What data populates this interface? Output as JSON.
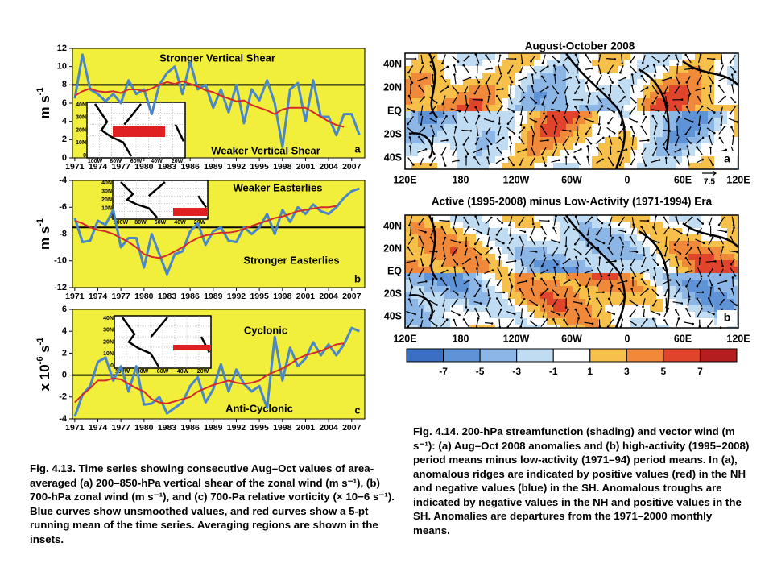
{
  "chart_data": [
    {
      "type": "line",
      "x": [
        1971,
        1972,
        1973,
        1974,
        1975,
        1976,
        1977,
        1978,
        1979,
        1980,
        1981,
        1982,
        1983,
        1984,
        1985,
        1986,
        1987,
        1988,
        1989,
        1990,
        1991,
        1992,
        1993,
        1994,
        1995,
        1996,
        1997,
        1998,
        1999,
        2000,
        2001,
        2002,
        2003,
        2004,
        2005,
        2006,
        2007,
        2008
      ],
      "series": [
        {
          "name": "unsmoothed",
          "color": "#4a86c8",
          "values": [
            6.5,
            11.3,
            7.5,
            7,
            6.2,
            7,
            6,
            8.5,
            7,
            7.5,
            4.8,
            8,
            9.3,
            10,
            7,
            10.5,
            7.5,
            8,
            5.5,
            7.5,
            5,
            8,
            3.8,
            7.5,
            6.3,
            8.5,
            6,
            1.2,
            7.5,
            8.2,
            4,
            8.5,
            4.5,
            4.5,
            2.5,
            4.8,
            4.8,
            2.5
          ]
        },
        {
          "name": "5-pt running mean",
          "color": "#d42a2a",
          "values": [
            6.8,
            7.3,
            7.6,
            7.3,
            7.2,
            7.3,
            7.1,
            7.5,
            7.5,
            7.3,
            7.6,
            8,
            8.3,
            8.1,
            8.4,
            8.1,
            7.8,
            7.4,
            7.2,
            6.8,
            6.5,
            6.2,
            6.3,
            5.8,
            5.5,
            5.2,
            4.8,
            5.3,
            5.5,
            5.5,
            5.5,
            5,
            4.5,
            4,
            3.6,
            3.4,
            null,
            null
          ]
        }
      ],
      "xlim": [
        1970.7,
        2008.7
      ],
      "xticks": [
        1971,
        1974,
        1977,
        1980,
        1983,
        1986,
        1989,
        1992,
        1995,
        1998,
        2001,
        2004,
        2007
      ],
      "ylim": [
        0,
        12
      ],
      "yticks": [
        0,
        2,
        4,
        6,
        8,
        10,
        12
      ],
      "reference_line": 8,
      "ylabel_parts": [
        "m s",
        "-1"
      ],
      "annotations": [
        "Stronger Vertical Shear",
        "Weaker Vertical Shear"
      ],
      "panel_label": "a",
      "inset_lat_labels": [
        "40N",
        "30N",
        "20N",
        "10N",
        "0"
      ],
      "inset_lon_labels": [
        "100W",
        "80W",
        "60W",
        "40W",
        "20W"
      ]
    },
    {
      "type": "line",
      "x": [
        1971,
        1972,
        1973,
        1974,
        1975,
        1976,
        1977,
        1978,
        1979,
        1980,
        1981,
        1982,
        1983,
        1984,
        1985,
        1986,
        1987,
        1988,
        1989,
        1990,
        1991,
        1992,
        1993,
        1994,
        1995,
        1996,
        1997,
        1998,
        1999,
        2000,
        2001,
        2002,
        2003,
        2004,
        2005,
        2006,
        2007,
        2008
      ],
      "series": [
        {
          "name": "unsmoothed",
          "color": "#4a86c8",
          "values": [
            -6.8,
            -8.6,
            -8.5,
            -7,
            -7.3,
            -6.2,
            -9,
            -8.3,
            -8.3,
            -10.5,
            -8,
            -9.5,
            -11,
            -9.5,
            -9.3,
            -7.8,
            -7.2,
            -8.8,
            -7.8,
            -7.5,
            -8.5,
            -8.6,
            -7.5,
            -8,
            -7.5,
            -6.5,
            -8,
            -6.2,
            -7.1,
            -6,
            -6.5,
            -5.8,
            -6.3,
            -6.5,
            -6,
            -5.3,
            -4.8,
            -4.6
          ]
        },
        {
          "name": "5-pt running mean",
          "color": "#d42a2a",
          "values": [
            -7,
            -7.2,
            -7.5,
            -7.7,
            -7.8,
            -8,
            -8.3,
            -8.6,
            -9,
            -9.5,
            -9.7,
            -9.8,
            -9.6,
            -9.3,
            -9,
            -8.6,
            -8.3,
            -8.1,
            -8,
            -7.9,
            -7.9,
            -7.8,
            -7.6,
            -7.4,
            -7.2,
            -7,
            -6.8,
            -6.7,
            -6.5,
            -6.3,
            -6.2,
            -6.1,
            -6,
            -6,
            -5.9,
            null,
            null,
            null
          ]
        }
      ],
      "xlim": [
        1970.7,
        2008.7
      ],
      "xticks": [
        1971,
        1974,
        1977,
        1980,
        1983,
        1986,
        1989,
        1992,
        1995,
        1998,
        2001,
        2004,
        2007
      ],
      "ylim": [
        -12,
        -4
      ],
      "yticks": [
        -12,
        -10,
        -8,
        -6,
        -4
      ],
      "reference_line": -7.5,
      "ylabel_parts": [
        "m s",
        "-1"
      ],
      "annotations": [
        "Weaker Easterlies",
        "Stronger Easterlies"
      ],
      "panel_label": "b",
      "inset_lat_labels": [
        "40N",
        "30N",
        "20N",
        "10N",
        "0"
      ],
      "inset_lon_labels": [
        "100W",
        "80W",
        "60W",
        "40W",
        "20W"
      ]
    },
    {
      "type": "line",
      "x": [
        1971,
        1972,
        1973,
        1974,
        1975,
        1976,
        1977,
        1978,
        1979,
        1980,
        1981,
        1982,
        1983,
        1984,
        1985,
        1986,
        1987,
        1988,
        1989,
        1990,
        1991,
        1992,
        1993,
        1994,
        1995,
        1996,
        1997,
        1998,
        1999,
        2000,
        2001,
        2002,
        2003,
        2004,
        2005,
        2006,
        2007,
        2008
      ],
      "series": [
        {
          "name": "unsmoothed",
          "color": "#4a86c8",
          "values": [
            -3.8,
            -1.8,
            -1,
            1.2,
            1.6,
            -0.5,
            0.8,
            -1.5,
            0.8,
            -2.7,
            -2.6,
            -2,
            -3.5,
            -3,
            -2.5,
            -1,
            -0.2,
            -2.5,
            -1.3,
            1,
            -1.5,
            0.5,
            -0.8,
            -1.5,
            -1,
            -3,
            3.5,
            -0.5,
            2.5,
            0.8,
            1.5,
            3,
            1.8,
            2.8,
            1.8,
            2.8,
            4.3,
            4
          ]
        },
        {
          "name": "5-pt running mean",
          "color": "#d42a2a",
          "values": [
            -2.5,
            -1.8,
            -1.2,
            -0.5,
            -0.5,
            -0.3,
            -0.4,
            -0.8,
            -1.2,
            -1.5,
            -2.2,
            -2.5,
            -2.6,
            -2.4,
            -2.2,
            -2,
            -1.5,
            -1.2,
            -0.9,
            -0.7,
            -0.5,
            -0.7,
            -0.8,
            -0.7,
            -0.5,
            0,
            0.3,
            0.6,
            1,
            1.5,
            1.8,
            2,
            2.2,
            2.5,
            2.8,
            2.9,
            null,
            null
          ]
        }
      ],
      "xlim": [
        1970.7,
        2008.7
      ],
      "xticks": [
        1971,
        1974,
        1977,
        1980,
        1983,
        1986,
        1989,
        1992,
        1995,
        1998,
        2001,
        2004,
        2007
      ],
      "ylim": [
        -4,
        6
      ],
      "yticks": [
        -4,
        -2,
        0,
        2,
        4,
        6
      ],
      "reference_line": 0,
      "ylabel_parts": [
        "x 10",
        "-6",
        " s",
        "-1"
      ],
      "annotations": [
        "Cyclonic",
        "Anti-Cyclonic"
      ],
      "panel_label": "c",
      "inset_lat_labels": [
        "40N",
        "30N",
        "20N",
        "10N",
        "0"
      ],
      "inset_lon_labels": [
        "100W",
        "80W",
        "60W",
        "40W",
        "20W"
      ]
    }
  ],
  "maps": [
    {
      "title": "August-October 2008",
      "lat_labels": [
        "40N",
        "20N",
        "EQ",
        "20S",
        "40S"
      ],
      "lon_labels": [
        "120E",
        "180",
        "120W",
        "60W",
        "0",
        "60E",
        "120E"
      ],
      "panel_label": "a",
      "vector_scale_label": "7.5"
    },
    {
      "title": "Active (1995-2008) minus Low-Activity (1971-1994) Era",
      "lat_labels": [
        "40N",
        "20N",
        "EQ",
        "20S",
        "40S"
      ],
      "lon_labels": [
        "120E",
        "180",
        "120W",
        "60W",
        "0",
        "60E",
        "120E"
      ],
      "panel_label": "b"
    }
  ],
  "colorbar": {
    "colors": [
      "#3a6fc4",
      "#5f93d8",
      "#8cb6e6",
      "#c0dcf2",
      "#ffffff",
      "#f7c04a",
      "#f08a3a",
      "#e0442a",
      "#b51e1e"
    ],
    "ticks": [
      -7,
      -5,
      -3,
      -1,
      1,
      3,
      5,
      7
    ]
  },
  "captions": [
    "Fig. 4.13. Time series showing consecutive Aug–Oct values of area-averaged (a) 200–850-hPa vertical shear of the zonal wind (m s⁻¹), (b) 700-hPa zonal wind (m s⁻¹), and (c) 700-Pa relative vorticity (× 10−6 s⁻¹). Blue curves show unsmoothed values, and red curves show a 5-pt running mean of the time series. Averaging regions are shown in the insets.",
    "Fig. 4.14. 200-hPa streamfunction (shading) and vector wind (m s⁻¹): (a) Aug–Oct 2008 anomalies and (b) high-activity (1995–2008) period means minus low-activity (1971–94) period means. In (a), anomalous ridges are indicated by positive values (red) in the NH and negative values (blue) in the SH. Anomalous troughs are indicated by negative values in the NH and positive values in the SH. Anomalies are departures from the 1971–2000 monthly means."
  ]
}
